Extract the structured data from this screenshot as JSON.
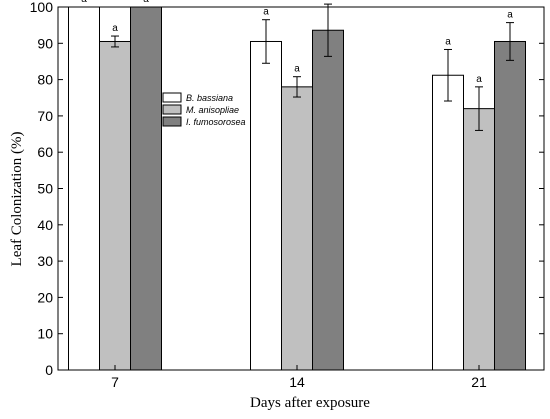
{
  "chart_data": {
    "type": "bar",
    "xlabel": "Days after exposure",
    "ylabel": "Leaf Colonization (%)",
    "ylim": [
      0,
      100
    ],
    "yticks": [
      0,
      10,
      20,
      30,
      40,
      50,
      60,
      70,
      80,
      90,
      100
    ],
    "categories": [
      "7",
      "14",
      "21"
    ],
    "legend_position": "center-left",
    "series": [
      {
        "name": "B. bassiana",
        "color": "#ffffff",
        "values": [
          100,
          90.5,
          81.2
        ],
        "errors": [
          0,
          6.0,
          7.1
        ],
        "letters": [
          "a",
          "a",
          "a"
        ]
      },
      {
        "name": "M. anisopliae",
        "color": "#c0c0c0",
        "values": [
          90.5,
          78.0,
          72.0
        ],
        "errors": [
          1.5,
          2.8,
          6.0
        ],
        "letters": [
          "a",
          "a",
          "a"
        ]
      },
      {
        "name": "I. fumosorosea",
        "color": "#808080",
        "values": [
          100,
          93.6,
          90.5
        ],
        "errors": [
          0,
          7.2,
          5.2
        ],
        "letters": [
          "a",
          "a",
          "a"
        ]
      }
    ]
  }
}
